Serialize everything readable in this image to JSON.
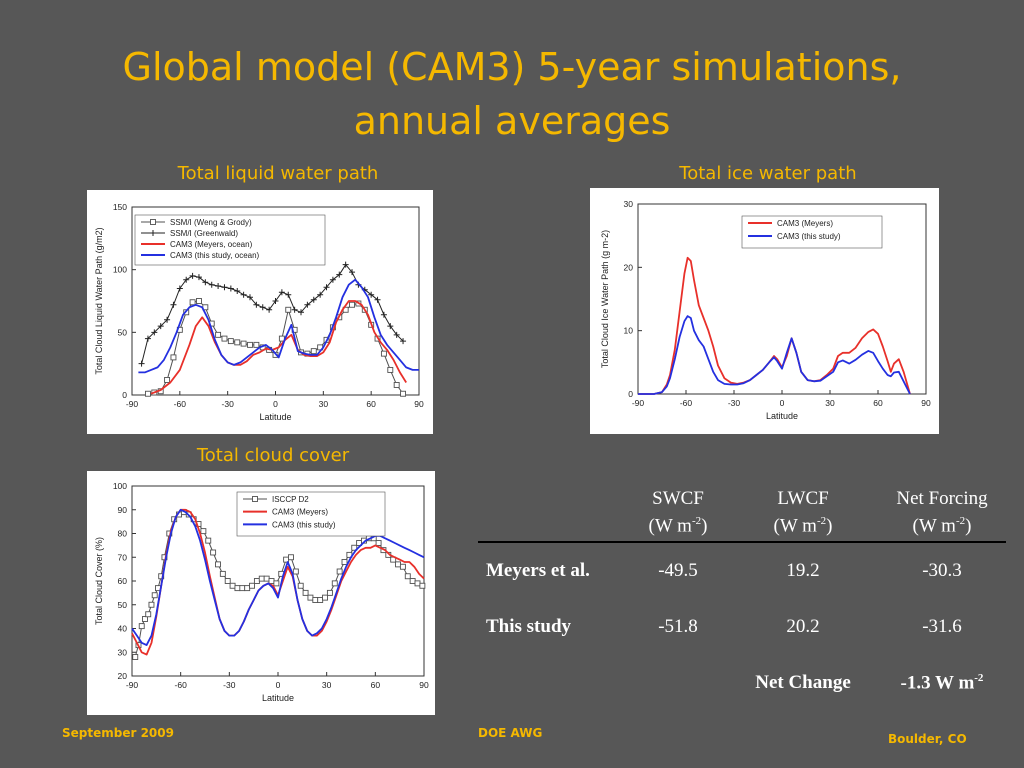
{
  "slide": {
    "title_line1": "Global model (CAM3) 5-year simulations,",
    "title_line2": "annual averages"
  },
  "panels": {
    "lwp_title": "Total liquid water path",
    "iwp_title": "Total ice water path",
    "cloud_title": "Total cloud cover"
  },
  "colors": {
    "background": "#575757",
    "title": "#f5b800",
    "meyers_red": "#e8302a",
    "this_study_blue": "#2430e0",
    "observations_gray": "#505050",
    "observations_black": "#222222"
  },
  "chart_data": [
    {
      "type": "line",
      "xlabel": "Latitude",
      "ylabel": "Total Cloud Liquid Water Path (g/m2)",
      "xlim": [
        -90,
        90
      ],
      "ylim": [
        0,
        150
      ],
      "xticks": [
        -90,
        -60,
        -30,
        0,
        30,
        60,
        90
      ],
      "yticks": [
        0,
        50,
        100,
        150
      ],
      "legend_position": "top-left",
      "series": [
        {
          "name": "SSM/I (Weng & Grody)",
          "color": "#505050",
          "marker": "square",
          "x": [
            -80,
            -76,
            -72,
            -68,
            -64,
            -60,
            -56,
            -52,
            -48,
            -44,
            -40,
            -36,
            -32,
            -28,
            -24,
            -20,
            -16,
            -12,
            -8,
            -4,
            0,
            4,
            8,
            12,
            16,
            20,
            24,
            28,
            32,
            36,
            40,
            44,
            48,
            52,
            56,
            60,
            64,
            68,
            72,
            76,
            80
          ],
          "y": [
            1,
            2,
            3,
            12,
            30,
            52,
            66,
            74,
            75,
            70,
            57,
            48,
            45,
            43,
            42,
            41,
            40,
            40,
            38,
            36,
            32,
            45,
            68,
            52,
            34,
            33,
            35,
            38,
            44,
            54,
            62,
            68,
            72,
            73,
            68,
            56,
            45,
            33,
            20,
            8,
            1
          ]
        },
        {
          "name": "SSM/I (Greenwald)",
          "color": "#222222",
          "marker": "plus",
          "x": [
            -84,
            -80,
            -76,
            -72,
            -68,
            -64,
            -60,
            -56,
            -52,
            -48,
            -44,
            -40,
            -36,
            -32,
            -28,
            -24,
            -20,
            -16,
            -12,
            -8,
            -4,
            0,
            4,
            8,
            12,
            16,
            20,
            24,
            28,
            32,
            36,
            40,
            44,
            48,
            52,
            56,
            60,
            64,
            68,
            72,
            76,
            80
          ],
          "y": [
            25,
            45,
            50,
            55,
            60,
            72,
            85,
            92,
            95,
            94,
            90,
            88,
            87,
            86,
            85,
            83,
            80,
            78,
            72,
            70,
            68,
            75,
            82,
            80,
            68,
            66,
            72,
            76,
            80,
            86,
            92,
            96,
            104,
            98,
            88,
            84,
            80,
            76,
            64,
            55,
            48,
            43
          ]
        },
        {
          "name": "CAM3 (Meyers, ocean)",
          "color": "#e8302a",
          "x": [
            -78,
            -72,
            -66,
            -60,
            -54,
            -50,
            -46,
            -42,
            -38,
            -34,
            -30,
            -26,
            -22,
            -18,
            -14,
            -10,
            -6,
            -2,
            2,
            6,
            10,
            14,
            18,
            22,
            26,
            30,
            34,
            38,
            42,
            46,
            50,
            54,
            58,
            62,
            66,
            70,
            74,
            78,
            82
          ],
          "y": [
            1,
            4,
            10,
            20,
            40,
            55,
            62,
            55,
            42,
            32,
            26,
            24,
            24,
            27,
            32,
            34,
            37,
            36,
            38,
            44,
            48,
            36,
            32,
            31,
            31,
            34,
            42,
            58,
            68,
            75,
            75,
            72,
            64,
            50,
            42,
            36,
            28,
            18,
            10
          ]
        },
        {
          "name": "CAM3 (this study, ocean)",
          "color": "#2430e0",
          "x": [
            -86,
            -82,
            -78,
            -74,
            -70,
            -66,
            -62,
            -58,
            -54,
            -50,
            -46,
            -42,
            -38,
            -34,
            -30,
            -26,
            -22,
            -18,
            -14,
            -10,
            -6,
            -2,
            2,
            6,
            10,
            14,
            18,
            22,
            26,
            30,
            34,
            38,
            42,
            46,
            50,
            54,
            58,
            62,
            66,
            70,
            74,
            78,
            82,
            86,
            90
          ],
          "y": [
            18,
            18,
            20,
            22,
            28,
            38,
            50,
            64,
            70,
            72,
            70,
            60,
            44,
            32,
            26,
            24,
            26,
            30,
            34,
            38,
            40,
            36,
            30,
            45,
            56,
            35,
            33,
            32,
            32,
            38,
            48,
            62,
            78,
            88,
            92,
            86,
            78,
            62,
            48,
            40,
            34,
            28,
            22,
            20,
            20
          ]
        }
      ]
    },
    {
      "type": "line",
      "xlabel": "Latitude",
      "ylabel": "Total Cloud Ice Water Path (g m-2)",
      "xlim": [
        -90,
        90
      ],
      "ylim": [
        0,
        30
      ],
      "xticks": [
        -90,
        -60,
        -30,
        0,
        30,
        60,
        90
      ],
      "yticks": [
        0,
        10,
        20,
        30
      ],
      "legend_position": "top-left",
      "series": [
        {
          "name": "CAM3 (Meyers)",
          "color": "#e8302a",
          "x": [
            -90,
            -80,
            -75,
            -72,
            -70,
            -67,
            -64,
            -61,
            -59,
            -57,
            -55,
            -52,
            -49,
            -46,
            -43,
            -40,
            -36,
            -32,
            -28,
            -24,
            -20,
            -16,
            -12,
            -8,
            -5,
            -3,
            0,
            3,
            6,
            9,
            12,
            16,
            20,
            24,
            28,
            32,
            35,
            38,
            42,
            46,
            50,
            54,
            57,
            60,
            63,
            66,
            68,
            70,
            73,
            76,
            80
          ],
          "y": [
            0,
            0,
            0.3,
            1.5,
            3,
            7,
            13,
            19,
            21.5,
            21,
            18,
            14,
            12,
            10,
            7.5,
            4.5,
            2.5,
            1.8,
            1.6,
            1.8,
            2.2,
            3,
            3.8,
            5,
            6,
            5.5,
            4.2,
            6,
            8.8,
            6.5,
            3.5,
            2.2,
            2,
            2.2,
            3,
            4,
            6,
            6.5,
            6.5,
            7.3,
            8.8,
            9.8,
            10.2,
            9.5,
            7.5,
            5.2,
            3.5,
            4.8,
            5.5,
            3.5,
            0
          ]
        },
        {
          "name": "CAM3 (this study)",
          "color": "#2430e0",
          "x": [
            -90,
            -80,
            -75,
            -72,
            -70,
            -67,
            -64,
            -61,
            -59,
            -57,
            -55,
            -52,
            -49,
            -46,
            -43,
            -40,
            -36,
            -32,
            -28,
            -24,
            -20,
            -16,
            -12,
            -8,
            -5,
            -3,
            0,
            3,
            6,
            9,
            12,
            16,
            20,
            24,
            28,
            32,
            35,
            38,
            42,
            46,
            50,
            54,
            57,
            60,
            63,
            66,
            68,
            70,
            73,
            76,
            80
          ],
          "y": [
            0,
            0,
            0.3,
            1.2,
            2.5,
            5.5,
            9,
            11.5,
            12.3,
            12,
            10,
            8.5,
            7.5,
            5.5,
            3.5,
            2.2,
            1.6,
            1.5,
            1.5,
            1.7,
            2.2,
            3,
            3.8,
            5,
            5.8,
            5.2,
            4,
            6.5,
            8.8,
            6.5,
            3.5,
            2.2,
            2,
            2.1,
            2.8,
            3.5,
            5,
            5.3,
            4.8,
            5.4,
            6.2,
            6.8,
            6.5,
            5.2,
            4,
            3,
            2.8,
            3.4,
            3.5,
            2,
            0
          ]
        }
      ]
    },
    {
      "type": "line",
      "xlabel": "Latitude",
      "ylabel": "Total Cloud Cover (%)",
      "xlim": [
        -90,
        90
      ],
      "ylim": [
        20,
        100
      ],
      "xticks": [
        -90,
        -60,
        -30,
        0,
        30,
        60,
        90
      ],
      "yticks": [
        20,
        30,
        40,
        50,
        60,
        70,
        80,
        90,
        100
      ],
      "legend_position": "top-right",
      "series": [
        {
          "name": "ISCCP D2",
          "color": "#505050",
          "marker": "square",
          "x": [
            -88,
            -86,
            -84,
            -82,
            -80,
            -78,
            -76,
            -74,
            -72,
            -70,
            -67,
            -64,
            -61,
            -58,
            -55,
            -52,
            -49,
            -46,
            -43,
            -40,
            -37,
            -34,
            -31,
            -28,
            -25,
            -22,
            -19,
            -16,
            -13,
            -10,
            -7,
            -4,
            -1,
            2,
            5,
            8,
            11,
            14,
            17,
            20,
            23,
            26,
            29,
            32,
            35,
            38,
            41,
            44,
            47,
            50,
            53,
            56,
            59,
            62,
            65,
            68,
            71,
            74,
            77,
            80,
            83,
            86,
            89
          ],
          "y": [
            28,
            33,
            41,
            44,
            46,
            50,
            54,
            57,
            62,
            70,
            80,
            86,
            88,
            89,
            88,
            86,
            84,
            81,
            77,
            72,
            67,
            63,
            60,
            58,
            57,
            57,
            57,
            58,
            60,
            61,
            61,
            60,
            59,
            63,
            69,
            70,
            64,
            58,
            55,
            53,
            52,
            52,
            53,
            55,
            59,
            64,
            68,
            71,
            74,
            76,
            77,
            78,
            78,
            76,
            73,
            71,
            69,
            67,
            66,
            62,
            60,
            59,
            58
          ]
        },
        {
          "name": "CAM3 (Meyers)",
          "color": "#e8302a",
          "x": [
            -90,
            -87,
            -84,
            -81,
            -78,
            -75,
            -72,
            -69,
            -66,
            -63,
            -60,
            -57,
            -54,
            -51,
            -48,
            -45,
            -42,
            -39,
            -36,
            -33,
            -30,
            -27,
            -24,
            -21,
            -18,
            -15,
            -12,
            -9,
            -6,
            -3,
            0,
            3,
            6,
            9,
            12,
            15,
            18,
            21,
            24,
            27,
            30,
            33,
            36,
            39,
            42,
            45,
            48,
            51,
            54,
            57,
            60,
            63,
            66,
            69,
            72,
            75,
            78,
            81,
            84,
            87,
            90
          ],
          "y": [
            38,
            34,
            30,
            29,
            34,
            45,
            58,
            71,
            81,
            87,
            90,
            90,
            89,
            86,
            80,
            72,
            62,
            53,
            44,
            39,
            37,
            37,
            39,
            43,
            48,
            52,
            56,
            58,
            59,
            58,
            54,
            60,
            66,
            62,
            52,
            44,
            39,
            37,
            37,
            39,
            43,
            48,
            54,
            60,
            64,
            68,
            71,
            73,
            74,
            74,
            75,
            74,
            73,
            71,
            70,
            69,
            68,
            68,
            66,
            63,
            61
          ]
        },
        {
          "name": "CAM3 (this study)",
          "color": "#2430e0",
          "x": [
            -90,
            -87,
            -84,
            -81,
            -78,
            -75,
            -72,
            -69,
            -66,
            -63,
            -60,
            -57,
            -54,
            -51,
            -48,
            -45,
            -42,
            -39,
            -36,
            -33,
            -30,
            -27,
            -24,
            -21,
            -18,
            -15,
            -12,
            -9,
            -6,
            -3,
            0,
            3,
            6,
            9,
            12,
            15,
            18,
            21,
            24,
            27,
            30,
            33,
            36,
            39,
            42,
            45,
            48,
            51,
            54,
            57,
            60,
            63,
            66,
            69,
            72,
            75,
            78,
            81,
            84,
            87,
            90
          ],
          "y": [
            40,
            37,
            34,
            33,
            37,
            46,
            58,
            70,
            80,
            87,
            90,
            89,
            87,
            83,
            77,
            69,
            60,
            52,
            44,
            39,
            37,
            37,
            39,
            43,
            48,
            52,
            56,
            58,
            59,
            57,
            53,
            62,
            68,
            63,
            52,
            44,
            39,
            37,
            38,
            40,
            44,
            49,
            55,
            61,
            66,
            70,
            73,
            75,
            77,
            78,
            79,
            79,
            78,
            77,
            76,
            75,
            74,
            73,
            72,
            71,
            70
          ]
        }
      ]
    }
  ],
  "table": {
    "headers": [
      {
        "line1": "SWCF",
        "unit": "(W m",
        "sup": "-2",
        "close": ")"
      },
      {
        "line1": "LWCF",
        "unit": "(W m",
        "sup": "-2",
        "close": ")"
      },
      {
        "line1": "Net Forcing",
        "unit": "(W m",
        "sup": "-2",
        "close": ")"
      }
    ],
    "rows": [
      {
        "label": "Meyers et al.",
        "swcf": "-49.5",
        "lwcf": "19.2",
        "net": "-30.3"
      },
      {
        "label": "This study",
        "swcf": "-51.8",
        "lwcf": "20.2",
        "net": "-31.6"
      }
    ],
    "net_change_label": "Net Change",
    "net_change_value": "-1.3 W m",
    "net_change_sup": "-2"
  },
  "footer": {
    "left": "September 2009",
    "center": "DOE AWG",
    "right": "Boulder, CO"
  }
}
